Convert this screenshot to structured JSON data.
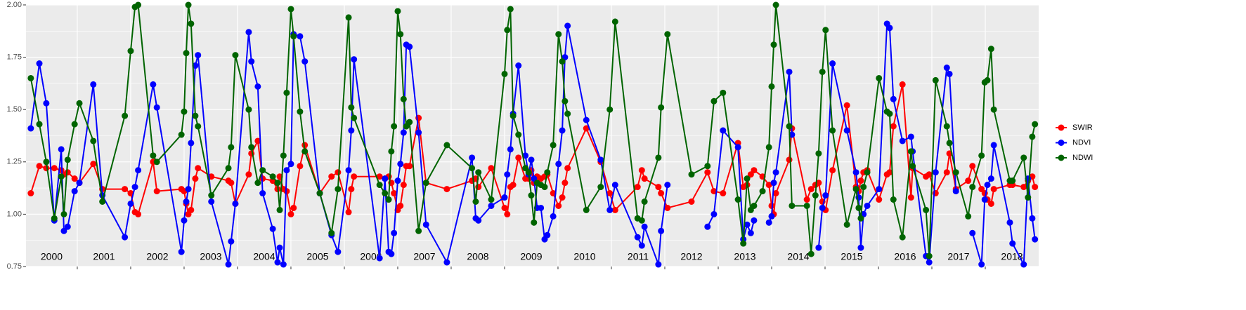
{
  "chart_data": {
    "type": "line",
    "legend": "right",
    "grid": true,
    "xlim": [
      2000.04,
      2019.0
    ],
    "xticks": [
      2001,
      2002,
      2003,
      2004,
      2005,
      2006,
      2007,
      2008,
      2009,
      2010,
      2011,
      2012,
      2013,
      2014,
      2015,
      2016,
      2017,
      2018
    ],
    "ylim": [
      0.75,
      2.0
    ],
    "yticks": [
      {
        "value": 0.75,
        "label": "0.75"
      },
      {
        "value": 1.0,
        "label": "1.00"
      },
      {
        "value": 1.25,
        "label": "1.25"
      },
      {
        "value": 1.5,
        "label": "1.50"
      },
      {
        "value": 1.75,
        "label": "1.75"
      },
      {
        "value": 2.0,
        "label": "2.00"
      }
    ],
    "y_minor_ticks": [
      0.875,
      1.125,
      1.375,
      1.625,
      1.875
    ],
    "year_labels": [
      "2000",
      "2001",
      "2002",
      "2003",
      "2004",
      "2005",
      "2006",
      "2007",
      "2008",
      "2009",
      "2010",
      "2011",
      "2012",
      "2013",
      "2014",
      "2015",
      "2016",
      "2017",
      "2018"
    ],
    "x": [
      2000.13,
      2000.29,
      2000.42,
      2000.57,
      2000.7,
      2000.75,
      2000.82,
      2000.95,
      2001.04,
      2001.3,
      2001.47,
      2001.89,
      2002.0,
      2002.08,
      2002.14,
      2002.42,
      2002.49,
      2002.95,
      2003.0,
      2003.04,
      2003.08,
      2003.13,
      2003.21,
      2003.26,
      2003.51,
      2003.83,
      2003.88,
      2003.96,
      2004.21,
      2004.26,
      2004.38,
      2004.47,
      2004.66,
      2004.75,
      2004.79,
      2004.86,
      2004.92,
      2005.0,
      2005.05,
      2005.17,
      2005.26,
      2005.54,
      2005.76,
      2005.88,
      2006.08,
      2006.13,
      2006.18,
      2006.66,
      2006.76,
      2006.83,
      2006.88,
      2006.93,
      2007.0,
      2007.05,
      2007.11,
      2007.16,
      2007.22,
      2007.39,
      2007.53,
      2007.92,
      2008.39,
      2008.46,
      2008.51,
      2008.75,
      2009.0,
      2009.05,
      2009.11,
      2009.16,
      2009.26,
      2009.39,
      2009.45,
      2009.5,
      2009.55,
      2009.61,
      2009.68,
      2009.75,
      2009.8,
      2009.91,
      2010.01,
      2010.08,
      2010.13,
      2010.18,
      2010.53,
      2010.8,
      2010.97,
      2011.07,
      2011.49,
      2011.57,
      2011.62,
      2011.88,
      2011.93,
      2012.05,
      2012.5,
      2012.8,
      2012.92,
      2013.09,
      2013.37,
      2013.47,
      2013.54,
      2013.61,
      2013.67,
      2013.83,
      2013.95,
      2014.0,
      2014.04,
      2014.08,
      2014.33,
      2014.38,
      2014.66,
      2014.74,
      2014.82,
      2014.88,
      2014.95,
      2015.01,
      2015.14,
      2015.41,
      2015.58,
      2015.63,
      2015.67,
      2015.72,
      2015.79,
      2016.01,
      2016.16,
      2016.21,
      2016.28,
      2016.45,
      2016.61,
      2016.64,
      2016.89,
      2016.95,
      2017.07,
      2017.28,
      2017.33,
      2017.45,
      2017.68,
      2017.76,
      2017.93,
      2017.99,
      2018.04,
      2018.11,
      2018.16,
      2018.46,
      2018.51,
      2018.72,
      2018.8,
      2018.88,
      2018.93
    ],
    "series": [
      {
        "name": "SWIR",
        "color": "#ff0000",
        "values": [
          1.1,
          1.23,
          1.22,
          1.22,
          1.21,
          1.19,
          1.2,
          1.17,
          1.15,
          1.24,
          1.12,
          1.12,
          1.1,
          1.01,
          1.0,
          1.25,
          1.11,
          1.12,
          1.11,
          1.05,
          1.0,
          1.02,
          1.17,
          1.22,
          1.18,
          1.16,
          1.15,
          1.05,
          1.19,
          1.29,
          1.35,
          1.17,
          1.16,
          1.12,
          1.18,
          1.12,
          1.11,
          1.0,
          1.03,
          1.23,
          1.33,
          1.1,
          1.18,
          1.2,
          1.01,
          1.12,
          1.18,
          1.18,
          1.17,
          1.18,
          1.15,
          1.1,
          1.02,
          1.04,
          1.14,
          1.23,
          1.23,
          1.46,
          1.15,
          1.12,
          1.16,
          1.17,
          1.13,
          1.22,
          1.03,
          1.0,
          1.13,
          1.14,
          1.27,
          1.17,
          1.17,
          1.21,
          1.15,
          1.18,
          1.17,
          1.18,
          1.19,
          1.1,
          1.04,
          1.08,
          1.15,
          1.22,
          1.41,
          1.25,
          1.1,
          1.02,
          1.13,
          1.21,
          1.17,
          1.13,
          1.1,
          1.03,
          1.06,
          1.2,
          1.11,
          1.1,
          1.34,
          1.13,
          1.14,
          1.19,
          1.21,
          1.18,
          1.14,
          1.04,
          1.0,
          1.1,
          1.26,
          1.41,
          1.07,
          1.12,
          1.14,
          1.15,
          1.06,
          1.02,
          1.21,
          1.52,
          1.13,
          1.11,
          1.16,
          1.2,
          1.21,
          1.07,
          1.19,
          1.2,
          1.42,
          1.62,
          1.08,
          1.22,
          1.18,
          1.19,
          1.1,
          1.2,
          1.29,
          1.12,
          1.16,
          1.23,
          1.12,
          1.1,
          1.07,
          1.05,
          1.12,
          1.14,
          1.14,
          1.13,
          1.16,
          1.18,
          1.13
        ]
      },
      {
        "name": "NDVI",
        "color": "#0000ff",
        "values": [
          1.41,
          1.72,
          1.53,
          0.97,
          1.31,
          0.92,
          0.94,
          1.11,
          1.15,
          1.62,
          1.09,
          0.89,
          1.05,
          1.13,
          1.21,
          1.62,
          1.51,
          0.82,
          0.97,
          1.06,
          1.12,
          1.34,
          1.71,
          1.76,
          1.06,
          0.76,
          0.87,
          1.05,
          1.87,
          1.73,
          1.61,
          1.1,
          0.93,
          0.77,
          0.84,
          0.76,
          1.21,
          1.24,
          1.86,
          1.85,
          1.73,
          1.1,
          0.9,
          0.82,
          1.21,
          1.4,
          1.74,
          0.79,
          1.17,
          0.82,
          0.81,
          0.91,
          1.16,
          1.24,
          1.39,
          1.81,
          1.8,
          1.39,
          0.95,
          0.77,
          1.27,
          0.98,
          0.97,
          1.04,
          1.08,
          1.19,
          1.31,
          1.48,
          1.71,
          1.28,
          1.19,
          1.26,
          1.17,
          1.03,
          1.03,
          0.88,
          0.9,
          0.99,
          1.24,
          1.4,
          1.75,
          1.9,
          1.45,
          1.26,
          1.02,
          1.14,
          0.89,
          0.85,
          0.94,
          0.76,
          0.92,
          1.14,
          null,
          0.94,
          1.0,
          1.4,
          1.32,
          0.88,
          0.95,
          0.91,
          0.97,
          null,
          0.96,
          0.99,
          1.15,
          1.2,
          1.68,
          1.38,
          null,
          null,
          null,
          0.84,
          1.03,
          1.09,
          1.72,
          1.4,
          1.2,
          1.08,
          0.84,
          1.0,
          1.04,
          1.12,
          1.91,
          1.89,
          1.55,
          1.35,
          1.37,
          1.3,
          0.8,
          0.77,
          1.2,
          1.7,
          1.67,
          1.11,
          null,
          0.91,
          0.76,
          1.07,
          1.14,
          1.17,
          1.33,
          0.96,
          0.86,
          0.76,
          1.17,
          0.98,
          0.88
        ]
      },
      {
        "name": "NDWI",
        "color": "#006400",
        "values": [
          1.65,
          1.43,
          1.25,
          0.98,
          1.18,
          1.0,
          1.26,
          1.43,
          1.53,
          1.35,
          1.06,
          1.47,
          1.78,
          1.99,
          2.0,
          1.28,
          1.25,
          1.38,
          1.49,
          1.77,
          2.0,
          1.91,
          1.47,
          1.42,
          1.09,
          1.22,
          1.32,
          1.76,
          1.5,
          1.32,
          1.15,
          1.21,
          1.18,
          1.15,
          1.02,
          1.28,
          1.58,
          1.98,
          1.85,
          1.49,
          1.3,
          1.1,
          0.91,
          1.12,
          1.94,
          1.51,
          1.46,
          1.14,
          1.1,
          1.07,
          1.3,
          1.42,
          1.97,
          1.86,
          1.55,
          1.42,
          1.44,
          0.92,
          1.15,
          1.33,
          1.22,
          1.06,
          1.2,
          1.07,
          1.67,
          1.88,
          1.98,
          1.47,
          1.38,
          1.22,
          1.2,
          1.09,
          0.96,
          1.15,
          1.14,
          1.13,
          1.2,
          1.33,
          1.86,
          1.73,
          1.54,
          1.48,
          1.02,
          1.13,
          1.5,
          1.92,
          0.98,
          0.97,
          1.06,
          1.27,
          1.51,
          1.86,
          1.19,
          1.23,
          1.54,
          1.58,
          1.07,
          0.86,
          1.17,
          1.02,
          1.04,
          1.11,
          1.32,
          1.61,
          1.81,
          2.0,
          1.42,
          1.04,
          1.04,
          0.81,
          1.09,
          1.29,
          1.68,
          1.88,
          1.4,
          0.95,
          1.12,
          1.03,
          0.98,
          1.13,
          1.2,
          1.65,
          1.49,
          1.48,
          1.07,
          0.89,
          1.3,
          1.23,
          1.02,
          0.8,
          1.64,
          1.42,
          1.34,
          1.2,
          0.99,
          1.13,
          1.28,
          1.63,
          1.64,
          1.79,
          1.5,
          1.16,
          1.16,
          1.27,
          1.08,
          1.37,
          1.43
        ]
      }
    ]
  }
}
